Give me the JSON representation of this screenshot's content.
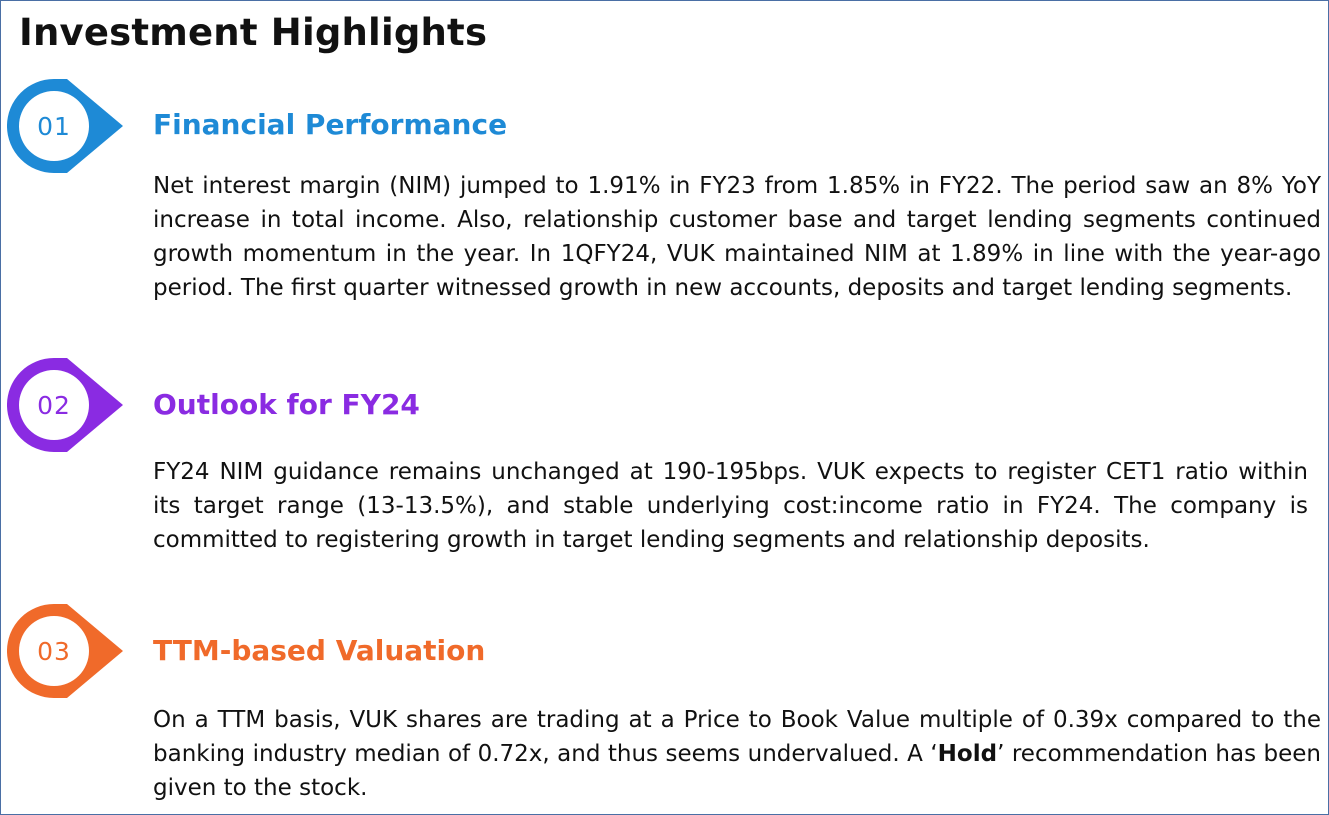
{
  "page": {
    "title": "Investment Highlights"
  },
  "sections": [
    {
      "number": "01",
      "heading": "Financial Performance",
      "color": "#1e8ad6",
      "body": "Net interest margin (NIM) jumped to 1.91% in FY23 from 1.85% in FY22. The period saw an 8% YoY increase in total income. Also, relationship customer base and target lending segments continued growth momentum in the year. In 1QFY24, VUK maintained NIM at 1.89% in line with the year-ago period. The first quarter witnessed growth in new accounts, deposits and target lending segments."
    },
    {
      "number": "02",
      "heading": "Outlook for FY24",
      "color": "#8a2be2",
      "body": "FY24 NIM guidance remains unchanged at 190-195bps. VUK expects to register CET1 ratio within its target range (13-13.5%), and stable underlying cost:income ratio in FY24. The company is committed to registering growth in target lending segments and relationship deposits."
    },
    {
      "number": "03",
      "heading": "TTM-based Valuation",
      "color": "#f06a2a",
      "body_before": "On a TTM basis, VUK shares are trading at a Price to Book Value multiple of 0.39x compared to the banking industry median of 0.72x, and thus seems undervalued. A ‘",
      "body_bold": "Hold",
      "body_after": "’ recommendation has been given to the stock."
    }
  ]
}
